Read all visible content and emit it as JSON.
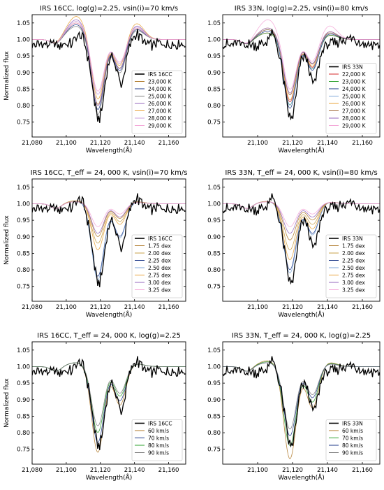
{
  "chart_data": [
    {
      "type": "line",
      "title": "IRS 16CC, log(g)=2.25, vsin(i)=70 km/s",
      "xlabel": "Wavelength(Å)",
      "ylabel": "Normalized flux",
      "xlim": [
        21080,
        21170
      ],
      "ylim": [
        0.705,
        1.075
      ],
      "xticks": [
        21080,
        21100,
        21120,
        21140,
        21160
      ],
      "xtick_labels": [
        "21,080",
        "21,100",
        "21,120",
        "21,140",
        "21,160"
      ],
      "yticks": [
        0.75,
        0.8,
        0.85,
        0.9,
        0.95,
        1.0,
        1.05
      ],
      "ytick_labels": [
        "0.75",
        "0.80",
        "0.85",
        "0.90",
        "0.95",
        "1.00",
        "1.05"
      ],
      "legend_position": "lower-right",
      "observed": {
        "name": "IRS 16CC",
        "color": "#000000"
      },
      "series": [
        {
          "name": "23,000 K",
          "color": "#b07a2a",
          "depth": 0.2,
          "lobe": 0.05
        },
        {
          "name": "24,000 K",
          "color": "#1f3a8a",
          "depth": 0.215,
          "lobe": 0.045
        },
        {
          "name": "25,000 K",
          "color": "#7f7f7f",
          "depth": 0.23,
          "lobe": 0.04
        },
        {
          "name": "26,000 K",
          "color": "#9467bd",
          "depth": 0.205,
          "lobe": 0.06
        },
        {
          "name": "27,000 K",
          "color": "#e8a33a",
          "depth": 0.185,
          "lobe": 0.07
        },
        {
          "name": "28,000 K",
          "color": "#c9a0dc",
          "depth": 0.17,
          "lobe": 0.055
        },
        {
          "name": "29,000 K",
          "color": "#f4a6d7",
          "depth": 0.16,
          "lobe": 0.05
        }
      ]
    },
    {
      "type": "line",
      "title": "IRS 33N, log(g)=2.25, vsin(i)=80 km/s",
      "xlabel": "Wavelength(Å)",
      "ylabel": "",
      "xlim": [
        21080,
        21170
      ],
      "ylim": [
        0.705,
        1.075
      ],
      "xticks": [
        21100,
        21120,
        21140,
        21160
      ],
      "xtick_labels": [
        "21,100",
        "21,120",
        "21,140",
        "21,160"
      ],
      "yticks": [
        0.75,
        0.8,
        0.85,
        0.9,
        0.95,
        1.0,
        1.05
      ],
      "ytick_labels": [
        "0.75",
        "0.80",
        "0.85",
        "0.90",
        "0.95",
        "1.00",
        "1.05"
      ],
      "legend_position": "lower-right",
      "observed": {
        "name": "IRS 33N",
        "color": "#000000"
      },
      "series": [
        {
          "name": "22,000 K",
          "color": "#d62728",
          "depth": 0.19,
          "lobe": 0.02
        },
        {
          "name": "23,000 K",
          "color": "#2ca02c",
          "depth": 0.2,
          "lobe": 0.02
        },
        {
          "name": "24,000 K",
          "color": "#1f3a8a",
          "depth": 0.21,
          "lobe": 0.025
        },
        {
          "name": "25,000 K",
          "color": "#7fa7d9",
          "depth": 0.2,
          "lobe": 0.03
        },
        {
          "name": "26,000 K",
          "color": "#e8a33a",
          "depth": 0.185,
          "lobe": 0.035
        },
        {
          "name": "27,000 K",
          "color": "#a06a3a",
          "depth": 0.17,
          "lobe": 0.03
        },
        {
          "name": "28,000 K",
          "color": "#9467bd",
          "depth": 0.165,
          "lobe": 0.035
        },
        {
          "name": "29,000 K",
          "color": "#f4a6d7",
          "depth": 0.155,
          "lobe": 0.06
        }
      ]
    },
    {
      "type": "line",
      "title": "IRS 16CC, T_eff = 24, 000 K, vsin(i)=70 km/s",
      "xlabel": "Wavelength(Å)",
      "ylabel": "Normalized flux",
      "xlim": [
        21080,
        21170
      ],
      "ylim": [
        0.705,
        1.075
      ],
      "xticks": [
        21080,
        21100,
        21120,
        21140,
        21160
      ],
      "xtick_labels": [
        "21,080",
        "21,100",
        "21,120",
        "21,140",
        "21,160"
      ],
      "yticks": [
        0.75,
        0.8,
        0.85,
        0.9,
        0.95,
        1.0,
        1.05
      ],
      "ytick_labels": [
        "0.75",
        "0.80",
        "0.85",
        "0.90",
        "0.95",
        "1.00",
        "1.05"
      ],
      "legend_position": "lower-right",
      "observed": {
        "name": "IRS 16CC",
        "color": "#000000"
      },
      "series": [
        {
          "name": "1.75 dex",
          "color": "#b07a2a",
          "depth": 0.1,
          "lobe": 0.015
        },
        {
          "name": "2.00 dex",
          "color": "#c8a048",
          "depth": 0.12,
          "lobe": 0.015
        },
        {
          "name": "2.25 dex",
          "color": "#1f3a8a",
          "depth": 0.22,
          "lobe": 0.015
        },
        {
          "name": "2.50 dex",
          "color": "#7fa7d9",
          "depth": 0.23,
          "lobe": 0.015
        },
        {
          "name": "2.75 dex",
          "color": "#e8a33a",
          "depth": 0.14,
          "lobe": 0.015
        },
        {
          "name": "3.00 dex",
          "color": "#9467bd",
          "depth": 0.09,
          "lobe": 0.01
        },
        {
          "name": "3.25 dex",
          "color": "#f4a6d7",
          "depth": 0.07,
          "lobe": 0.01
        }
      ]
    },
    {
      "type": "line",
      "title": "IRS 33N, T_eff = 24, 000 K, vsin(i)=80 km/s",
      "xlabel": "Wavelength(Å)",
      "ylabel": "",
      "xlim": [
        21080,
        21170
      ],
      "ylim": [
        0.705,
        1.075
      ],
      "xticks": [
        21100,
        21120,
        21140,
        21160
      ],
      "xtick_labels": [
        "21,100",
        "21,120",
        "21,140",
        "21,160"
      ],
      "yticks": [
        0.75,
        0.8,
        0.85,
        0.9,
        0.95,
        1.0,
        1.05
      ],
      "ytick_labels": [
        "0.75",
        "0.80",
        "0.85",
        "0.90",
        "0.95",
        "1.00",
        "1.05"
      ],
      "legend_position": "lower-right",
      "observed": {
        "name": "IRS 33N",
        "color": "#000000"
      },
      "series": [
        {
          "name": "1.75 dex",
          "color": "#b07a2a",
          "depth": 0.11,
          "lobe": 0.01
        },
        {
          "name": "2.00 dex",
          "color": "#c8a048",
          "depth": 0.14,
          "lobe": 0.012
        },
        {
          "name": "2.25 dex",
          "color": "#1f3a8a",
          "depth": 0.2,
          "lobe": 0.012
        },
        {
          "name": "2.50 dex",
          "color": "#7fa7d9",
          "depth": 0.21,
          "lobe": 0.012
        },
        {
          "name": "2.75 dex",
          "color": "#e8a33a",
          "depth": 0.17,
          "lobe": 0.012
        },
        {
          "name": "3.00 dex",
          "color": "#9467bd",
          "depth": 0.09,
          "lobe": 0.01
        },
        {
          "name": "3.25 dex",
          "color": "#f4a6d7",
          "depth": 0.07,
          "lobe": 0.01
        }
      ]
    },
    {
      "type": "line",
      "title": "IRS 16CC, T_eff = 24, 000 K, log(g)=2.25",
      "xlabel": "Wavelength(Å)",
      "ylabel": "Normalized flux",
      "xlim": [
        21080,
        21170
      ],
      "ylim": [
        0.705,
        1.075
      ],
      "xticks": [
        21080,
        21100,
        21120,
        21140,
        21160
      ],
      "xtick_labels": [
        "21,080",
        "21,100",
        "21,120",
        "21,140",
        "21,160"
      ],
      "yticks": [
        0.75,
        0.8,
        0.85,
        0.9,
        0.95,
        1.0,
        1.05
      ],
      "ytick_labels": [
        "0.75",
        "0.80",
        "0.85",
        "0.90",
        "0.95",
        "1.00",
        "1.05"
      ],
      "legend_position": "lower-right",
      "observed": {
        "name": "IRS 16CC",
        "color": "#000000"
      },
      "series": [
        {
          "name": "60 km/s",
          "color": "#b07a2a",
          "depth": 0.26,
          "lobe": 0.02
        },
        {
          "name": "70 km/s",
          "color": "#1f3a8a",
          "depth": 0.23,
          "lobe": 0.02
        },
        {
          "name": "80 km/s",
          "color": "#2ca02c",
          "depth": 0.2,
          "lobe": 0.02
        },
        {
          "name": "90 km/s",
          "color": "#7f7f7f",
          "depth": 0.18,
          "lobe": 0.02
        }
      ]
    },
    {
      "type": "line",
      "title": "IRS 33N, T_eff = 24, 000 K, log(g)=2.25",
      "xlabel": "Wavelength(Å)",
      "ylabel": "",
      "xlim": [
        21080,
        21170
      ],
      "ylim": [
        0.705,
        1.075
      ],
      "xticks": [
        21100,
        21120,
        21140,
        21160
      ],
      "xtick_labels": [
        "21,100",
        "21,120",
        "21,140",
        "21,160"
      ],
      "yticks": [
        0.75,
        0.8,
        0.85,
        0.9,
        0.95,
        1.0,
        1.05
      ],
      "ytick_labels": [
        "0.75",
        "0.80",
        "0.85",
        "0.90",
        "0.95",
        "1.00",
        "1.05"
      ],
      "legend_position": "lower-right",
      "observed": {
        "name": "IRS 33N",
        "color": "#000000"
      },
      "series": [
        {
          "name": "60 km/s",
          "color": "#b07a2a",
          "depth": 0.28,
          "lobe": 0.03
        },
        {
          "name": "70 km/s",
          "color": "#2ca02c",
          "depth": 0.24,
          "lobe": 0.025
        },
        {
          "name": "80 km/s",
          "color": "#1f3a8a",
          "depth": 0.21,
          "lobe": 0.02
        },
        {
          "name": "90 km/s",
          "color": "#7f7f7f",
          "depth": 0.19,
          "lobe": 0.02
        }
      ]
    }
  ]
}
